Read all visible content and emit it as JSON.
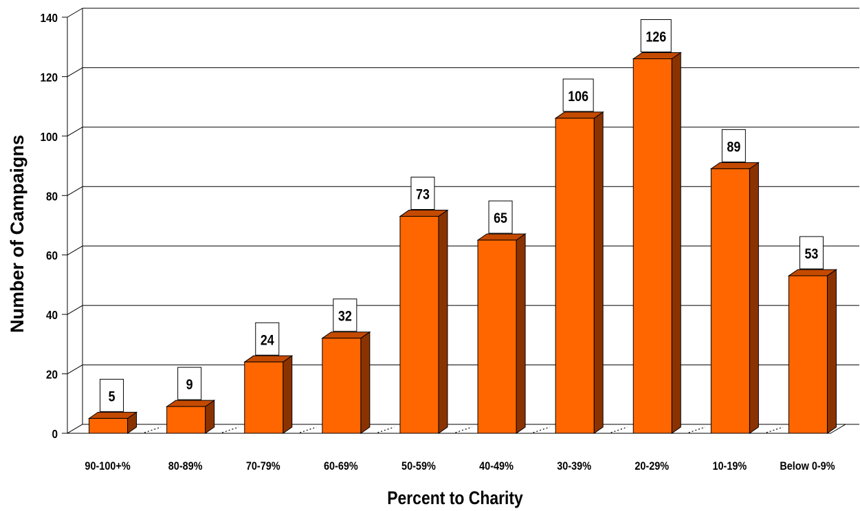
{
  "chart_data": {
    "type": "bar",
    "title": "",
    "xlabel": "Percent to Charity",
    "ylabel": "Number of Campaigns",
    "categories": [
      "90-100+%",
      "80-89%",
      "70-79%",
      "60-69%",
      "50-59%",
      "40-49%",
      "30-39%",
      "20-29%",
      "10-19%",
      "Below 0-9%"
    ],
    "values": [
      5,
      9,
      24,
      32,
      73,
      65,
      106,
      126,
      89,
      53
    ],
    "ylim": [
      0,
      140
    ],
    "yticks": [
      0,
      20,
      40,
      60,
      80,
      100,
      120,
      140
    ],
    "grid": true,
    "legend": "none",
    "colors": {
      "bar_front": "#ff6600",
      "bar_side": "#8b3300",
      "bar_top": "#c44a00",
      "grid": "#000000"
    }
  }
}
